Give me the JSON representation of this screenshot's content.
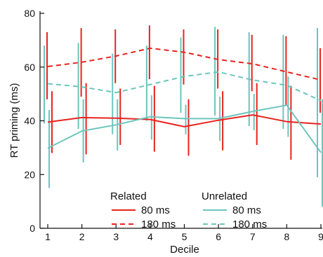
{
  "chart_data": {
    "type": "line",
    "xlabel": "Decile",
    "ylabel": "RT priming (ms)",
    "x": [
      1,
      2,
      3,
      4,
      5,
      6,
      7,
      8,
      9
    ],
    "xlim": [
      1,
      9
    ],
    "ylim": [
      0,
      80
    ],
    "yticks": [
      0,
      20,
      40,
      60,
      80
    ],
    "grid": false,
    "legend": {
      "placement": "bottom-center",
      "groups": [
        {
          "title": "Related",
          "entries": [
            "80 ms",
            "180 ms"
          ]
        },
        {
          "title": "Unrelated",
          "entries": [
            "80 ms",
            "180 ms"
          ]
        }
      ]
    },
    "series": [
      {
        "group": "Related",
        "name": "80 ms",
        "color": "#e8231f",
        "dash": "solid",
        "values": [
          39.5,
          41.2,
          41.0,
          40.5,
          37.8,
          40.2,
          42.2,
          39.7,
          38.8
        ],
        "err_low": [
          28.0,
          27.5,
          31.0,
          28.5,
          27.0,
          29.0,
          31.0,
          25.5,
          31.0
        ],
        "err_high": [
          51.0,
          54.0,
          52.0,
          53.0,
          48.0,
          51.0,
          54.0,
          53.0,
          47.0
        ]
      },
      {
        "group": "Related",
        "name": "180 ms",
        "color": "#e8231f",
        "dash": "dashed",
        "values": [
          60.2,
          61.8,
          64.1,
          67.0,
          65.5,
          62.8,
          61.2,
          58.2,
          55.2
        ],
        "err_low": [
          48.0,
          49.0,
          54.0,
          55.5,
          53.5,
          52.0,
          51.0,
          46.0,
          43.0
        ],
        "err_high": [
          73.0,
          74.5,
          74.0,
          75.5,
          74.0,
          74.0,
          72.0,
          71.5,
          67.0
        ]
      },
      {
        "group": "Unrelated",
        "name": "80 ms",
        "color": "#6cc5bd",
        "dash": "solid",
        "values": [
          29.8,
          36.2,
          38.5,
          41.5,
          40.8,
          40.8,
          43.5,
          45.8,
          28.2
        ],
        "err_low": [
          15.0,
          24.5,
          29.0,
          33.0,
          35.0,
          32.5,
          36.5,
          34.0,
          8.0
        ],
        "err_high": [
          44.0,
          48.0,
          48.0,
          49.5,
          46.0,
          49.0,
          50.0,
          56.5,
          48.0
        ]
      },
      {
        "group": "Unrelated",
        "name": "180 ms",
        "color": "#6cc5bd",
        "dash": "dashed",
        "values": [
          53.8,
          52.6,
          50.5,
          53.5,
          56.5,
          58.2,
          55.2,
          53.2,
          47.5
        ],
        "err_low": [
          39.0,
          37.0,
          35.0,
          40.0,
          43.0,
          42.0,
          38.0,
          37.0,
          19.0
        ],
        "err_high": [
          68.0,
          69.0,
          65.0,
          68.0,
          71.0,
          75.0,
          73.0,
          72.0,
          74.5
        ]
      }
    ]
  }
}
